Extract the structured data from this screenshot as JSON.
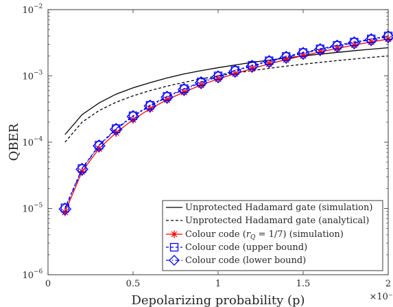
{
  "chart_data": {
    "type": "line",
    "title": "",
    "xlabel": "Depolarizing probability (p)",
    "ylabel": "QBER",
    "x_multiplier": "×10⁻³",
    "x_scale_factor": 0.001,
    "xlim": [
      0,
      2
    ],
    "ylim": [
      1e-06,
      0.01
    ],
    "yscale": "log",
    "grid": false,
    "legend_position": "bottom-right",
    "x_ticks": [
      0,
      0.5,
      1,
      1.5,
      2
    ],
    "x_tick_labels": [
      "0",
      "0.5",
      "1",
      "1.5",
      "2"
    ],
    "y_ticks": [
      1e-06,
      1e-05,
      0.0001,
      0.001,
      0.01
    ],
    "y_tick_bases": [
      "10",
      "10",
      "10",
      "10",
      "10"
    ],
    "y_tick_exps": [
      "−6",
      "−5",
      "−4",
      "−3",
      "−2"
    ],
    "x": [
      0.1,
      0.2,
      0.3,
      0.4,
      0.5,
      0.6,
      0.7,
      0.8,
      0.9,
      1.0,
      1.1,
      1.2,
      1.3,
      1.4,
      1.5,
      1.6,
      1.7,
      1.8,
      1.9,
      2.0
    ],
    "series": [
      {
        "name": "Unprotected Hadamard gate (simulation)",
        "color": "#000000",
        "dash": "solid",
        "marker": "none",
        "values": [
          0.00013,
          0.00026,
          0.00039,
          0.00053,
          0.00066,
          0.00079,
          0.00093,
          0.00107,
          0.0012,
          0.00133,
          0.00146,
          0.0016,
          0.00173,
          0.00186,
          0.002,
          0.00213,
          0.00226,
          0.0024,
          0.00253,
          0.00266
        ]
      },
      {
        "name": "Unprotected Hadamard gate (analytical)",
        "color": "#000000",
        "dash": "dashed",
        "marker": "none",
        "values": [
          0.0001,
          0.0002,
          0.0003,
          0.0004,
          0.0005,
          0.0006,
          0.0007,
          0.0008,
          0.0009,
          0.001,
          0.0011,
          0.0012,
          0.0013,
          0.0014,
          0.0015,
          0.0016,
          0.0017,
          0.0018,
          0.0019,
          0.002
        ]
      },
      {
        "name": "Colour code (r_Q = 1/7) (simulation)",
        "legend_parts": [
          "Colour code (",
          "r",
          "Q",
          " = 1/7) (simulation)"
        ],
        "color": "#ff0000",
        "dash": "solid",
        "marker": "asterisk",
        "values": [
          8.8e-06,
          3.6e-05,
          8e-05,
          0.000139,
          0.000219,
          0.000319,
          0.000437,
          0.00057,
          0.000728,
          0.0009,
          0.00108,
          0.00129,
          0.00152,
          0.00176,
          0.00202,
          0.0023,
          0.0026,
          0.00292,
          0.00325,
          0.0036
        ]
      },
      {
        "name": "Colour code (upper bound)",
        "color": "#0000ff",
        "dash": "dashed",
        "marker": "square",
        "values": [
          1.02e-05,
          4e-05,
          9e-05,
          0.00016,
          0.00025,
          0.00036,
          0.00049,
          0.00064,
          0.00081,
          0.001,
          0.00121,
          0.00144,
          0.00169,
          0.00196,
          0.00225,
          0.00256,
          0.00289,
          0.00324,
          0.00361,
          0.004
        ]
      },
      {
        "name": "Colour code (lower bound)",
        "color": "#0000ff",
        "dash": "dashdot",
        "marker": "diamond",
        "values": [
          9.8e-06,
          3.9e-05,
          8.8e-05,
          0.000156,
          0.000244,
          0.000351,
          0.000478,
          0.000624,
          0.00079,
          0.00097,
          0.00118,
          0.0014,
          0.00165,
          0.00191,
          0.00219,
          0.00249,
          0.00282,
          0.00316,
          0.00352,
          0.0039
        ]
      }
    ]
  }
}
